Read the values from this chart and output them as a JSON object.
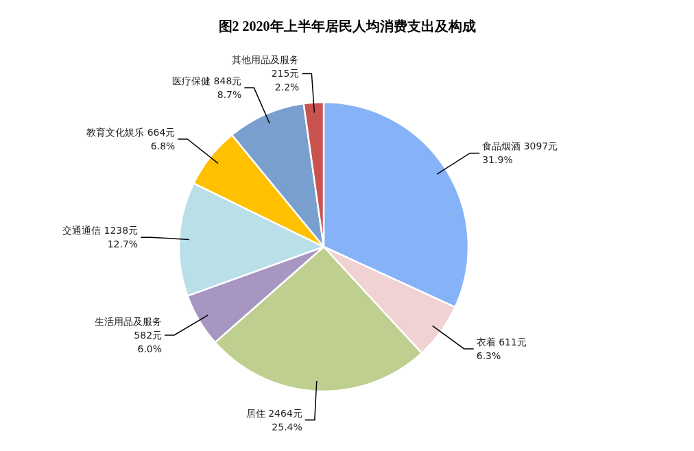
{
  "chart_data": {
    "type": "pie",
    "title": "图2  2020年上半年居民人均消费支出及构成",
    "categories": [
      "食品烟酒",
      "衣着",
      "居住",
      "生活用品及服务",
      "交通通信",
      "教育文化娱乐",
      "医疗保健",
      "其他用品及服务"
    ],
    "values": [
      3097,
      611,
      2464,
      582,
      1238,
      664,
      848,
      215
    ],
    "value_labels": [
      "3097元\n31.9%",
      "611元\n6.3%",
      "2464元\n25.4%",
      "582元\n6.0%",
      "1238元\n12.7%",
      "664元\n6.8%",
      "848元\n8.7%",
      "215元\n2.2%"
    ],
    "colors": [
      "#86b3f7",
      "#f0d2d2",
      "#bfcf8f",
      "#a796c1",
      "#b9dfe8",
      "#ffc000",
      "#789fcd",
      "#c9534f"
    ]
  }
}
